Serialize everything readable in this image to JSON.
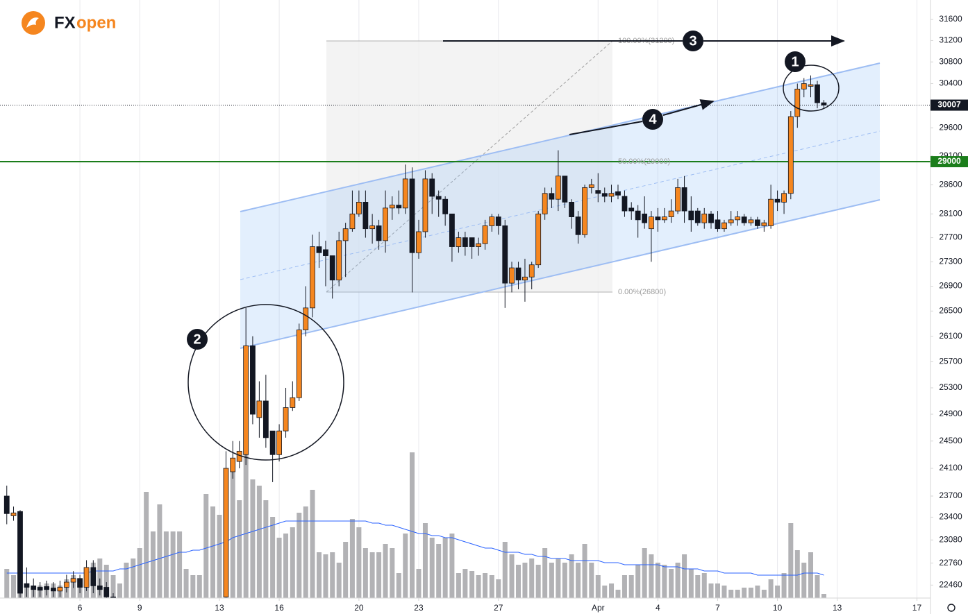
{
  "logo": {
    "brand_a": "FX",
    "brand_b": "open"
  },
  "annotations": {
    "fib_levels": [
      "100.00%(31200)",
      "50.00%(29000)",
      "0.00%(26800)"
    ],
    "markers": [
      "1",
      "2",
      "3",
      "4"
    ]
  },
  "chart_data": {
    "type": "candlestick",
    "log_scale": true,
    "grid": "vertical",
    "up_color": "#f5861f",
    "down_color": "#131722",
    "volume_color": "#b2b2b5",
    "volume_ma_color": "#2962ff",
    "xlim": [
      1.99,
      48.68
    ],
    "ylim": [
      22285,
      31973
    ],
    "volume_lim": [
      0,
      100
    ],
    "xticks": [
      6,
      9,
      13,
      16,
      20,
      23,
      27,
      {
        "value": 32,
        "label": "Apr"
      },
      {
        "value": 35,
        "label": "4"
      },
      {
        "value": 38,
        "label": "7"
      },
      {
        "value": 41,
        "label": "10"
      },
      {
        "value": 44,
        "label": "13"
      },
      {
        "value": 48,
        "label": "17"
      }
    ],
    "yticks": [
      31600,
      31200,
      30800,
      30400,
      29600,
      29100,
      28600,
      28100,
      27700,
      27300,
      26900,
      26500,
      26100,
      25700,
      25300,
      24900,
      24500,
      24100,
      23700,
      23400,
      23080,
      22760,
      22460
    ],
    "hlines": [
      {
        "value": 29000,
        "color": "#1b7d1b"
      }
    ],
    "last_price": 30007,
    "x": [
      2.33,
      2.67,
      3,
      3.33,
      3.67,
      4,
      4.33,
      4.67,
      5,
      5.33,
      5.67,
      6,
      6.33,
      6.67,
      7,
      7.33,
      7.67,
      8,
      8.33,
      8.67,
      9,
      9.33,
      9.67,
      10,
      10.33,
      10.67,
      11,
      11.33,
      11.67,
      12,
      12.33,
      12.67,
      13,
      13.33,
      13.67,
      14,
      14.33,
      14.67,
      15,
      15.33,
      15.67,
      16,
      16.33,
      16.67,
      17,
      17.33,
      17.67,
      18,
      18.33,
      18.67,
      19,
      19.33,
      19.67,
      20,
      20.33,
      20.67,
      21,
      21.33,
      21.67,
      22,
      22.33,
      22.67,
      23,
      23.33,
      23.67,
      24,
      24.33,
      24.67,
      25,
      25.33,
      25.67,
      26,
      26.33,
      26.67,
      27,
      27.33,
      27.67,
      28,
      28.33,
      28.67,
      29,
      29.33,
      29.67,
      30,
      30.33,
      30.67,
      31,
      31.33,
      31.67,
      32,
      32.33,
      32.67,
      33,
      33.33,
      33.67,
      34,
      34.33,
      34.67,
      35,
      35.33,
      35.67,
      36,
      36.33,
      36.67,
      37,
      37.33,
      37.67,
      38,
      38.33,
      38.67,
      39,
      39.33,
      39.67,
      40,
      40.33,
      40.67,
      41,
      41.33,
      41.67,
      42,
      42.33,
      42.67,
      43,
      43.33
    ],
    "open": [
      23700,
      23420,
      23480,
      22480,
      22450,
      22430,
      22440,
      22420,
      22380,
      22430,
      22500,
      22550,
      22430,
      22700,
      22450,
      22430,
      22300,
      null,
      null,
      null,
      null,
      null,
      null,
      null,
      null,
      null,
      null,
      null,
      null,
      null,
      null,
      null,
      null,
      22300,
      24050,
      24200,
      24300,
      25950,
      24850,
      25100,
      24650,
      24300,
      24650,
      25000,
      25150,
      26200,
      26550,
      27550,
      27500,
      27400,
      27000,
      27650,
      27850,
      28100,
      28300,
      27850,
      27900,
      27650,
      28200,
      28250,
      28200,
      28700,
      27450,
      27800,
      28700,
      28400,
      28350,
      28100,
      27550,
      27700,
      27700,
      27550,
      27600,
      27900,
      28050,
      27900,
      26950,
      27200,
      27000,
      27050,
      27250,
      28100,
      28450,
      28350,
      28750,
      28300,
      28050,
      27750,
      28550,
      28500,
      28450,
      28400,
      28480,
      28400,
      28200,
      28150,
      28100,
      27850,
      28050,
      28000,
      28050,
      28150,
      28550,
      28150,
      28150,
      27950,
      28100,
      28000,
      27850,
      27950,
      28000,
      28050,
      27950,
      28000,
      27900,
      27900,
      28350,
      28300,
      28450,
      29800,
      30300,
      30350,
      30380,
      30050
    ],
    "high": [
      23850,
      23550,
      23500,
      22700,
      22550,
      22500,
      22520,
      22500,
      22520,
      22600,
      22650,
      22600,
      22800,
      22800,
      22550,
      22500,
      22350,
      null,
      null,
      null,
      null,
      null,
      null,
      null,
      null,
      null,
      null,
      null,
      null,
      null,
      null,
      null,
      null,
      24350,
      24500,
      24500,
      26550,
      26100,
      25400,
      25500,
      24650,
      24750,
      25300,
      25400,
      26300,
      26900,
      27750,
      27800,
      27650,
      27400,
      27800,
      27950,
      28500,
      28500,
      28500,
      28100,
      28000,
      28500,
      28400,
      28500,
      28950,
      28900,
      28000,
      28850,
      28800,
      28500,
      28400,
      28100,
      27800,
      27800,
      27700,
      27700,
      28000,
      28100,
      28100,
      28000,
      27300,
      27300,
      27350,
      27300,
      28150,
      28550,
      28550,
      29200,
      28750,
      28350,
      28150,
      28600,
      28700,
      28800,
      28550,
      28600,
      28600,
      28500,
      28300,
      28250,
      28400,
      28150,
      28200,
      28200,
      28350,
      28700,
      28750,
      28400,
      28200,
      28200,
      28150,
      28150,
      28000,
      28150,
      28150,
      28100,
      28050,
      28050,
      28000,
      28600,
      28500,
      28500,
      29900,
      30400,
      30500,
      30550,
      30450,
      30100
    ],
    "low": [
      23300,
      23350,
      22250,
      22300,
      22300,
      22300,
      22320,
      22300,
      22300,
      22360,
      22420,
      22350,
      22380,
      22350,
      22320,
      22250,
      22000,
      null,
      null,
      null,
      null,
      null,
      null,
      null,
      null,
      null,
      null,
      null,
      null,
      null,
      null,
      null,
      null,
      22290,
      23950,
      24100,
      24150,
      24750,
      24550,
      24400,
      23900,
      24200,
      24550,
      24950,
      25100,
      26100,
      26400,
      27200,
      26900,
      26700,
      26900,
      27050,
      27800,
      28050,
      27700,
      27600,
      27500,
      27450,
      28000,
      28100,
      28100,
      26800,
      27350,
      27700,
      28100,
      28050,
      27900,
      27300,
      27450,
      27400,
      27350,
      27400,
      27500,
      27800,
      27750,
      26550,
      26800,
      26850,
      26650,
      26850,
      27200,
      28000,
      28200,
      28150,
      28200,
      27850,
      27600,
      27700,
      28450,
      28300,
      28300,
      28300,
      28350,
      28050,
      28000,
      27700,
      27850,
      27300,
      27800,
      27950,
      27950,
      28100,
      27950,
      27800,
      27900,
      27850,
      27850,
      27800,
      27800,
      27900,
      27900,
      27900,
      27900,
      27850,
      27800,
      27850,
      28150,
      28100,
      28350,
      29600,
      30150,
      30150,
      29950,
      29950
    ],
    "close": [
      23450,
      23460,
      22350,
      22430,
      22400,
      22390,
      22400,
      22380,
      22430,
      22500,
      22550,
      22430,
      22700,
      22450,
      22400,
      22300,
      22100,
      null,
      null,
      null,
      null,
      null,
      null,
      null,
      null,
      null,
      null,
      null,
      null,
      null,
      null,
      null,
      null,
      24100,
      24250,
      24350,
      25950,
      24900,
      25100,
      24550,
      24300,
      24650,
      25000,
      25150,
      26200,
      26550,
      27550,
      27450,
      27400,
      27000,
      27650,
      27850,
      28100,
      28300,
      27850,
      27900,
      27650,
      28200,
      28250,
      28200,
      28700,
      27450,
      27800,
      28700,
      28400,
      28350,
      28100,
      27550,
      27700,
      27550,
      27550,
      27600,
      27900,
      28050,
      27900,
      26950,
      27200,
      27000,
      27050,
      27250,
      28100,
      28450,
      28350,
      28750,
      28300,
      28050,
      27750,
      28550,
      28600,
      28450,
      28400,
      28450,
      28420,
      28150,
      28150,
      28000,
      27950,
      28050,
      28000,
      28050,
      28150,
      28550,
      28150,
      28000,
      27950,
      28100,
      27950,
      27850,
      27950,
      28000,
      28050,
      27950,
      28000,
      27900,
      27950,
      28350,
      28300,
      28450,
      29800,
      30300,
      30400,
      30380,
      30050,
      30007
    ],
    "volume": [
      14,
      11,
      21,
      7,
      4,
      6,
      7,
      7,
      6,
      9,
      11,
      9,
      12,
      17,
      19,
      16,
      11,
      7,
      17,
      19,
      24,
      51,
      32,
      45,
      32,
      32,
      32,
      14,
      11,
      11,
      50,
      44,
      40,
      61,
      67,
      47,
      71,
      57,
      54,
      47,
      39,
      29,
      31,
      34,
      41,
      44,
      52,
      22,
      21,
      22,
      17,
      27,
      38,
      34,
      24,
      22,
      22,
      26,
      24,
      12,
      31,
      70,
      14,
      36,
      29,
      26,
      29,
      31,
      12,
      14,
      13,
      11,
      12,
      11,
      9,
      27,
      21,
      16,
      17,
      19,
      16,
      24,
      17,
      19,
      17,
      21,
      17,
      26,
      17,
      11,
      6,
      7,
      4,
      11,
      11,
      16,
      24,
      21,
      17,
      16,
      14,
      17,
      21,
      14,
      11,
      12,
      7,
      7,
      6,
      4,
      4,
      5,
      5,
      6,
      4,
      9,
      6,
      12,
      36,
      23,
      17,
      22,
      11,
      2
    ],
    "volume_ma": [
      12,
      12,
      12,
      12,
      12,
      12,
      12,
      12,
      12,
      12,
      12,
      12,
      12,
      13,
      13,
      13,
      13,
      14,
      14,
      15,
      16,
      17,
      18,
      19,
      20,
      21,
      22,
      22,
      23,
      23,
      24,
      25,
      26,
      27,
      29,
      30,
      31,
      32,
      33,
      34,
      35,
      36,
      37,
      37,
      37,
      37,
      37,
      37,
      37,
      37,
      37,
      37,
      37,
      37,
      37,
      36,
      36,
      35,
      35,
      34,
      33,
      32,
      31,
      31,
      30,
      30,
      29,
      29,
      28,
      27,
      26,
      25,
      24,
      24,
      23,
      22,
      22,
      22,
      21,
      21,
      20,
      20,
      19,
      19,
      19,
      18,
      18,
      18,
      18,
      18,
      17,
      17,
      17,
      16,
      16,
      16,
      16,
      16,
      16,
      15,
      15,
      15,
      14,
      14,
      14,
      13,
      13,
      13,
      12,
      12,
      12,
      12,
      12,
      11,
      11,
      11,
      11,
      11,
      11,
      11,
      12,
      12,
      12,
      11
    ]
  }
}
